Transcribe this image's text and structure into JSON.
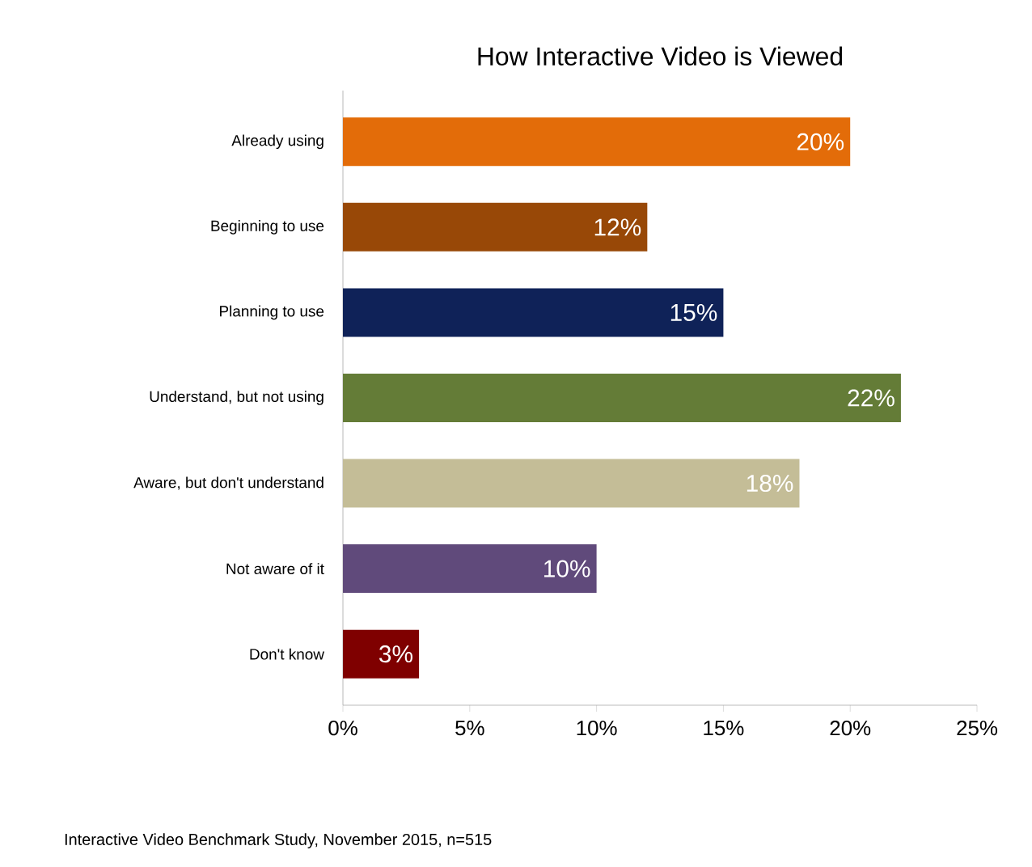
{
  "chart_data": {
    "type": "bar",
    "orientation": "horizontal",
    "title": "How Interactive Video is Viewed",
    "categories": [
      "Already using",
      "Beginning to use",
      "Planning to use",
      "Understand, but not using",
      "Aware, but don't understand",
      "Not aware of it",
      "Don't know"
    ],
    "values": [
      20,
      12,
      15,
      22,
      18,
      10,
      3
    ],
    "value_labels": [
      "20%",
      "12%",
      "15%",
      "22%",
      "18%",
      "10%",
      "3%"
    ],
    "colors": [
      "#e36c09",
      "#984807",
      "#0f2258",
      "#647c37",
      "#c4bd97",
      "#604a7b",
      "#7f0000"
    ],
    "xlim": [
      0,
      25
    ],
    "xticks": [
      {
        "value": 0,
        "label": "0%"
      },
      {
        "value": 5,
        "label": "5%"
      },
      {
        "value": 10,
        "label": "10%"
      },
      {
        "value": 15,
        "label": "15%"
      },
      {
        "value": 20,
        "label": "20%"
      },
      {
        "value": 25,
        "label": "25%"
      }
    ],
    "annotations": [
      "Interactive Video Benchmark Study, November 2015, n=515"
    ]
  }
}
